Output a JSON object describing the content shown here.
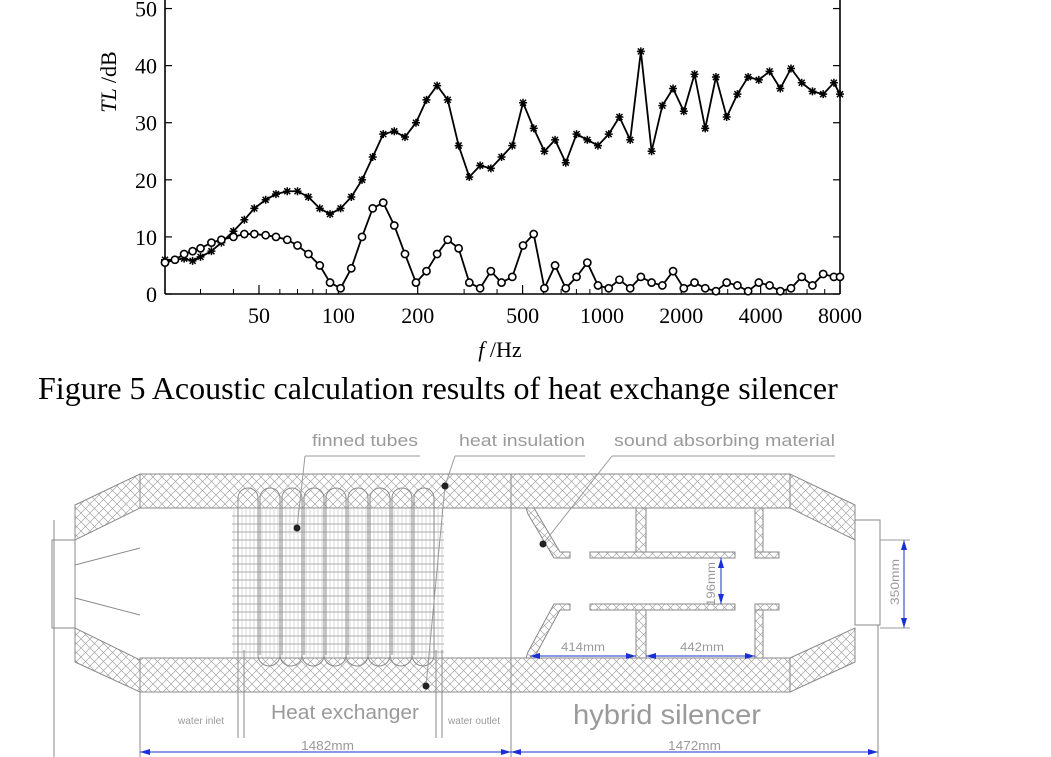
{
  "chart_data": {
    "type": "line",
    "xlabel": "f /Hz",
    "ylabel": "TL /dB",
    "xscale": "log",
    "xlim": [
      22,
      8000
    ],
    "ylim": [
      0,
      55
    ],
    "xticks": [
      50,
      100,
      200,
      500,
      1000,
      2000,
      4000,
      8000
    ],
    "xtick_labels": [
      "50",
      "100",
      "200",
      "500",
      "1000",
      "2000",
      "4000",
      "8000"
    ],
    "yticks": [
      0,
      10,
      20,
      30,
      40,
      50
    ],
    "ytick_labels": [
      "0",
      "10",
      "20",
      "30",
      "40",
      "50"
    ],
    "series": [
      {
        "marker": "star",
        "x": [
          22,
          24,
          26,
          28,
          30,
          33,
          36,
          40,
          44,
          48,
          53,
          58,
          64,
          70,
          77,
          85,
          93,
          102,
          112,
          123,
          135,
          148,
          163,
          179,
          197,
          216,
          237,
          260,
          286,
          314,
          345,
          379,
          416,
          457,
          502,
          551,
          605,
          664,
          729,
          801,
          880,
          966,
          1061,
          1165,
          1280,
          1405,
          1543,
          1695,
          1861,
          2044,
          2245,
          2465,
          2707,
          2973,
          3265,
          3585,
          3937,
          4324,
          4748,
          5215,
          5727,
          6289,
          6906,
          7584,
          8000
        ],
        "y": [
          6,
          6,
          6.2,
          5.8,
          6.5,
          7.5,
          9,
          11,
          13,
          15,
          16.5,
          17.5,
          18,
          18,
          17,
          15,
          14,
          15,
          17,
          20,
          24,
          28,
          28.5,
          27.5,
          30,
          34,
          36.5,
          34,
          26,
          20.5,
          22.5,
          22,
          24,
          26,
          33.5,
          29,
          25,
          27,
          23,
          28,
          27,
          26,
          28,
          31,
          27,
          42.5,
          25,
          33,
          36,
          32,
          38.5,
          29,
          38,
          31,
          35,
          38,
          37.5,
          39,
          36,
          39.5,
          37,
          35.5,
          35,
          37,
          35
        ]
      },
      {
        "marker": "circle",
        "x": [
          22,
          24,
          26,
          28,
          30,
          33,
          36,
          40,
          44,
          48,
          53,
          58,
          64,
          70,
          77,
          85,
          93,
          102,
          112,
          123,
          135,
          148,
          163,
          179,
          197,
          216,
          237,
          260,
          286,
          314,
          345,
          379,
          416,
          457,
          502,
          551,
          605,
          664,
          729,
          801,
          880,
          966,
          1061,
          1165,
          1280,
          1405,
          1543,
          1695,
          1861,
          2044,
          2245,
          2465,
          2707,
          2973,
          3265,
          3585,
          3937,
          4324,
          4748,
          5215,
          5727,
          6289,
          6906,
          7584,
          8000
        ],
        "y": [
          5.5,
          6,
          7,
          7.5,
          8,
          9,
          9.5,
          10,
          10.5,
          10.5,
          10.3,
          10,
          9.5,
          8.5,
          7,
          5,
          2,
          1,
          4.5,
          10,
          15,
          16,
          12,
          7,
          2,
          4,
          7,
          9.5,
          8,
          2,
          1,
          4,
          2,
          3,
          8.5,
          10.5,
          1,
          5,
          1,
          3,
          5.5,
          1.5,
          1,
          2.5,
          1,
          3,
          2,
          1.5,
          4,
          1,
          2,
          1,
          0.5,
          2,
          1.5,
          0.5,
          2,
          1.5,
          0.5,
          1,
          3,
          1.5,
          3.5,
          3,
          3
        ]
      }
    ]
  },
  "caption": "Figure 5 Acoustic calculation results of heat exchange silencer",
  "diagram": {
    "labels": {
      "finned_tubes": "finned tubes",
      "heat_insulation": "heat insulation",
      "sound_absorbing": "sound absorbing material",
      "water_inlet": "water inlet",
      "heat_exchanger": "Heat exchanger",
      "water_outlet": "water outlet",
      "hybrid_silencer": "hybrid silencer"
    },
    "dimensions": {
      "len_exchanger": "1482mm",
      "len_silencer": "1472mm",
      "dim_414": "414mm",
      "dim_442": "442mm",
      "dim_196": "196mm",
      "dim_350": "350mm"
    },
    "colors": {
      "line": "#8a8a8a",
      "dimension": "#1a2fd6",
      "marker": "#222222"
    }
  }
}
